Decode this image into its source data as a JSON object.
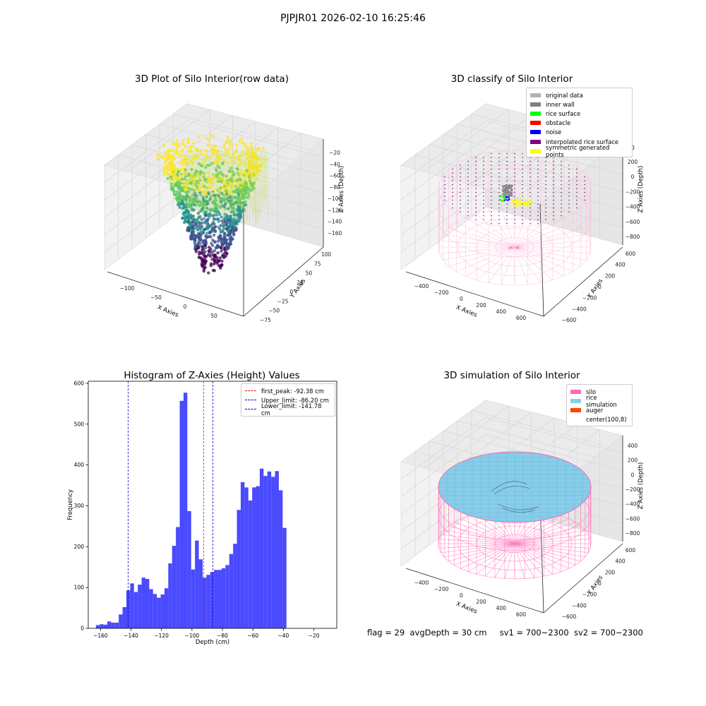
{
  "figure": {
    "suptitle": "PJPJR01 2026-02-10 16:25:46",
    "status": {
      "flag": "flag = 29",
      "avg_depth": "avgDepth = 30 cm",
      "sv1": "sv1 = 700~2300",
      "sv2": "sv2 = 700~2300"
    }
  },
  "colors": {
    "hist_bar": "#4a4aff",
    "peak_line": "#ff0000",
    "limit_line": "#0000cc",
    "silo": "#ff69b4",
    "rice_simulation": "#87ceeb",
    "auger": "#ff4500",
    "original_data": "#b3b3b3",
    "inner_wall": "#808080",
    "rice_surface": "#00ff00",
    "obstacle": "#ff0000",
    "noise": "#0000ff",
    "interpolated_rice_surface": "#800080",
    "symmetric_generated_points": "#ffff00"
  },
  "chart_data": [
    {
      "type": "scatter",
      "dimensions": "3d",
      "title": "3D Plot of Silo Interior(row data)",
      "xlabel": "X Axies",
      "ylabel": "Y Axies",
      "zlabel": "Z Axies (Depth)",
      "x_ticks": [
        "−100",
        "−50",
        "0",
        "50"
      ],
      "y_ticks": [
        "−75",
        "−50",
        "−25",
        "0",
        "25",
        "50",
        "75",
        "100"
      ],
      "z_ticks": [
        "−20",
        "−40",
        "−60",
        "−80",
        "−100",
        "−120",
        "−140",
        "−160"
      ],
      "colormap": "viridis",
      "z_range": [
        -165,
        -15
      ]
    },
    {
      "type": "scatter",
      "dimensions": "3d",
      "title": "3D classify of Silo Interior",
      "xlabel": "X Axies",
      "ylabel": "Y Axies",
      "zlabel": "Z Axies (Depth)",
      "x_ticks": [
        "−400",
        "−200",
        "0",
        "200",
        "400",
        "600"
      ],
      "y_ticks": [
        "−600",
        "−400",
        "−200",
        "0",
        "200",
        "400",
        "600"
      ],
      "z_ticks": [
        "200",
        "0",
        "−200",
        "−400",
        "−600",
        "−800"
      ],
      "partial_ticks": [
        "00"
      ],
      "legend": [
        {
          "label": "original data",
          "color": "#b3b3b3"
        },
        {
          "label": "inner wall",
          "color": "#808080"
        },
        {
          "label": "rice surface",
          "color": "#00ff00"
        },
        {
          "label": "obstacle",
          "color": "#ff0000"
        },
        {
          "label": "noise",
          "color": "#0000ff"
        },
        {
          "label": "interpolated rice surface",
          "color": "#800080"
        },
        {
          "label": "symmetric generated points",
          "color": "#ffff00"
        }
      ],
      "legend_position": "top-right"
    },
    {
      "type": "bar",
      "title": "Histogram of Z-Axies (Height) Values",
      "xlabel": "Depth (cm)",
      "ylabel": "Frequency",
      "xlim": [
        -168,
        -5
      ],
      "ylim": [
        0,
        605
      ],
      "x_ticks": [
        -160,
        -140,
        -120,
        -100,
        -80,
        -60,
        -40,
        -20
      ],
      "y_ticks": [
        0,
        100,
        200,
        300,
        400,
        500,
        600
      ],
      "bin_start": -163,
      "bin_width": 2.5,
      "values": [
        8,
        10,
        9,
        17,
        14,
        14,
        34,
        52,
        93,
        110,
        89,
        107,
        124,
        121,
        96,
        84,
        75,
        83,
        98,
        159,
        202,
        248,
        557,
        577,
        287,
        144,
        215,
        169,
        124,
        131,
        138,
        143,
        143,
        147,
        155,
        182,
        207,
        290,
        358,
        345,
        313,
        345,
        348,
        391,
        373,
        384,
        371,
        385,
        338,
        246
      ],
      "lines": [
        {
          "label": "first_peak: -92.38 cm",
          "x": -92.38,
          "color": "#ff0000"
        },
        {
          "label": "Upper_limit: -86.20 cm",
          "x": -86.2,
          "color": "#0000cc"
        },
        {
          "label": "Lower_limit: -141.78 cm",
          "x": -141.78,
          "color": "#0000cc"
        }
      ],
      "legend_position": "top-right"
    },
    {
      "type": "surface",
      "dimensions": "3d",
      "title": "3D simulation of Silo Interior",
      "xlabel": "X Axies",
      "ylabel": "Y Axies",
      "zlabel": "Z Axies (Depth)",
      "x_ticks": [
        "−400",
        "−200",
        "0",
        "200",
        "400",
        "600"
      ],
      "y_ticks": [
        "−600",
        "−400",
        "−200",
        "0",
        "200",
        "400",
        "600"
      ],
      "z_ticks": [
        "400",
        "200",
        "0",
        "−200",
        "−400",
        "−600",
        "−800"
      ],
      "legend": [
        {
          "label": "silo",
          "color": "#ff69b4"
        },
        {
          "label": "rice simulation",
          "color": "#87ceeb"
        },
        {
          "label": "auger",
          "color": "#ff4500"
        },
        {
          "label": "center(100,8)",
          "color": "#ffffff"
        }
      ],
      "legend_position": "top-right"
    }
  ]
}
